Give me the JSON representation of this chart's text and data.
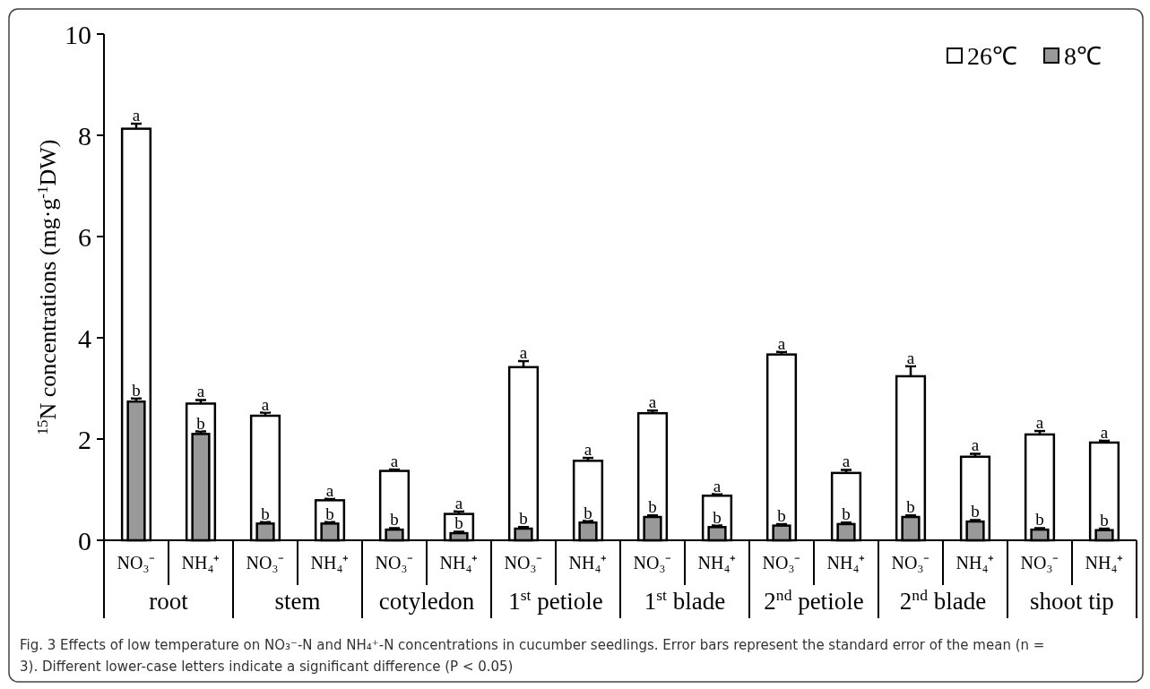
{
  "chart_data": {
    "type": "bar",
    "ylabel": "$^{15}$N concentrations (mg·g$^{-1}$DW)",
    "categories": [
      "NO₃⁻",
      "NH₄⁺",
      "NO₃⁻",
      "NH₄⁺",
      "NO₃⁻",
      "NH₄⁺",
      "NO₃⁻",
      "NH₄⁺",
      "NO₃⁻",
      "NH₄⁺",
      "NO₃⁻",
      "NH₄⁺",
      "NO₃⁻",
      "NH₄⁺",
      "NO₃⁻",
      "NH₄⁺"
    ],
    "series": [
      {
        "name": "26℃",
        "color": "#ffffff",
        "values": [
          8.13,
          2.7,
          2.46,
          0.79,
          1.37,
          0.52,
          3.42,
          1.57,
          2.51,
          0.88,
          3.67,
          1.33,
          3.24,
          1.65,
          2.09,
          1.93
        ],
        "errors": [
          0.1,
          0.07,
          0.06,
          0.03,
          0.03,
          0.05,
          0.12,
          0.06,
          0.05,
          0.03,
          0.05,
          0.06,
          0.2,
          0.06,
          0.07,
          0.04
        ],
        "value_labels": [
          "a",
          "a",
          "a",
          "a",
          "a",
          "a",
          "a",
          "a",
          "a",
          "a",
          "a",
          "a",
          "a",
          "a",
          "a",
          "a"
        ]
      },
      {
        "name": "8℃",
        "color": "#999999",
        "values": [
          2.74,
          2.1,
          0.33,
          0.33,
          0.21,
          0.14,
          0.23,
          0.35,
          0.46,
          0.26,
          0.29,
          0.32,
          0.46,
          0.37,
          0.21,
          0.2
        ],
        "errors": [
          0.06,
          0.05,
          0.03,
          0.03,
          0.03,
          0.03,
          0.03,
          0.03,
          0.03,
          0.03,
          0.03,
          0.03,
          0.03,
          0.03,
          0.03,
          0.03
        ],
        "value_labels": [
          "b",
          "b",
          "b",
          "b",
          "b",
          "b",
          "b",
          "b",
          "b",
          "b",
          "b",
          "b",
          "b",
          "b",
          "b",
          "b"
        ]
      }
    ],
    "ylim": [
      0,
      10
    ],
    "yticks": [
      0,
      2,
      4,
      6,
      8,
      10
    ],
    "legend": "top right",
    "annotations": [
      "root",
      "stem",
      "cotyledon",
      "1$^{st}$ petiole",
      "1$^{st}$ blade",
      "2$^{nd}$ petiole",
      "2$^{nd}$ blade",
      "shoot tip",
      "Fig. 3 Effects of low temperature on NO₃⁻-N and NH₄⁺-N concentrations in cucumber seedlings. Error bars represent the standard error of the mean (n = 3). Different lower-case letters indicate a significant difference (P < 0.05)"
    ]
  }
}
